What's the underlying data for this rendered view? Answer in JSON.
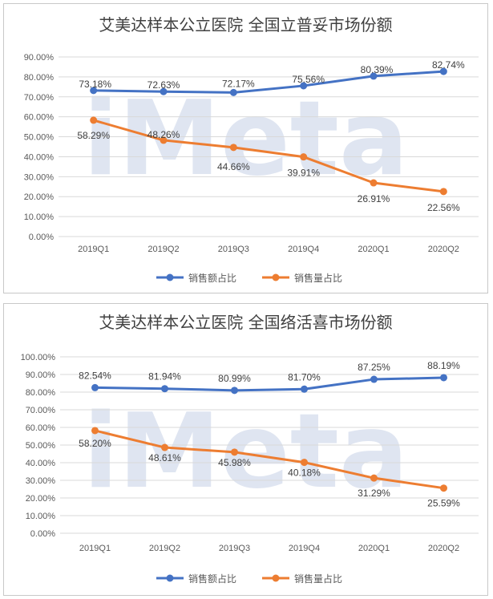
{
  "colors": {
    "blue": "#4472C4",
    "orange": "#ED7D31",
    "grid": "#d9d9d9",
    "text": "#595959",
    "watermark": "#dfe5f1"
  },
  "watermark": "iMeta",
  "chart_data": [
    {
      "type": "line",
      "title": "艾美达样本公立医院 全国立普妥市场份额",
      "categories": [
        "2019Q1",
        "2019Q2",
        "2019Q3",
        "2019Q4",
        "2020Q1",
        "2020Q2"
      ],
      "ylim": [
        0,
        90
      ],
      "yticks": [
        "0.00%",
        "10.00%",
        "20.00%",
        "30.00%",
        "40.00%",
        "50.00%",
        "60.00%",
        "70.00%",
        "80.00%",
        "90.00%"
      ],
      "grid": true,
      "legend": "bottom",
      "series": [
        {
          "name": "销售额占比",
          "values": [
            73.18,
            72.63,
            72.17,
            75.56,
            80.39,
            82.74
          ],
          "labels": [
            "73.18%",
            "72.63%",
            "72.17%",
            "75.56%",
            "80.39%",
            "82.74%"
          ]
        },
        {
          "name": "销售量占比",
          "values": [
            58.29,
            48.26,
            44.66,
            39.91,
            26.91,
            22.56
          ],
          "labels": [
            "58.29%",
            "48.26%",
            "44.66%",
            "39.91%",
            "26.91%",
            "22.56%"
          ]
        }
      ]
    },
    {
      "type": "line",
      "title": "艾美达样本公立医院 全国络活喜市场份额",
      "categories": [
        "2019Q1",
        "2019Q2",
        "2019Q3",
        "2019Q4",
        "2020Q1",
        "2020Q2"
      ],
      "ylim": [
        0,
        100
      ],
      "yticks": [
        "0.00%",
        "10.00%",
        "20.00%",
        "30.00%",
        "40.00%",
        "50.00%",
        "60.00%",
        "70.00%",
        "80.00%",
        "90.00%",
        "100.00%"
      ],
      "grid": true,
      "legend": "bottom",
      "series": [
        {
          "name": "销售额占比",
          "values": [
            82.54,
            81.94,
            80.99,
            81.7,
            87.25,
            88.19
          ],
          "labels": [
            "82.54%",
            "81.94%",
            "80.99%",
            "81.70%",
            "87.25%",
            "88.19%"
          ]
        },
        {
          "name": "销售量占比",
          "values": [
            58.2,
            48.61,
            45.98,
            40.18,
            31.29,
            25.59
          ],
          "labels": [
            "58.20%",
            "48.61%",
            "45.98%",
            "40.18%",
            "31.29%",
            "25.59%"
          ]
        }
      ]
    }
  ]
}
